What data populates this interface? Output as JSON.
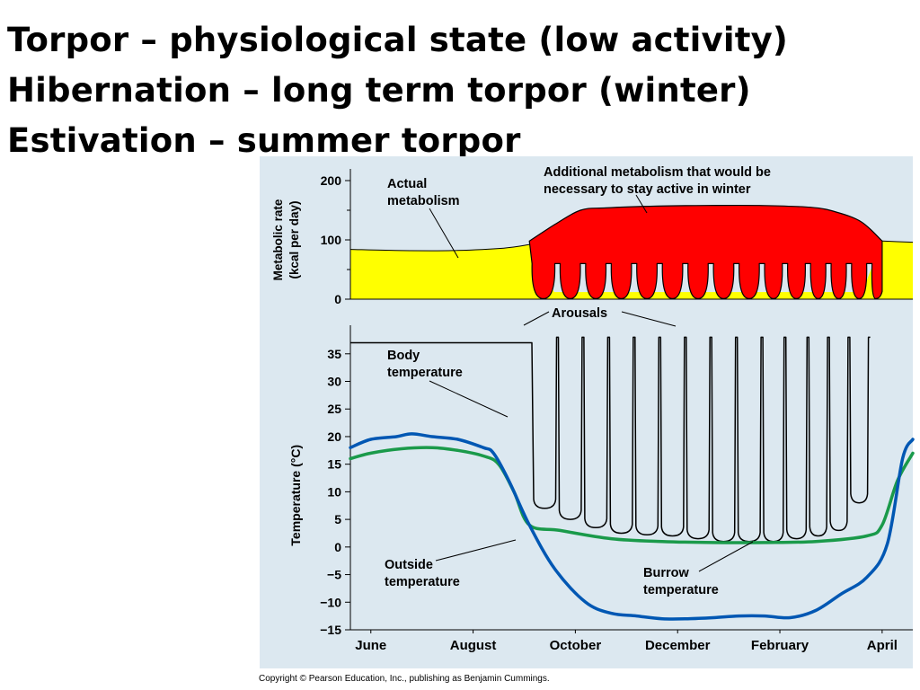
{
  "headlines": [
    "Torpor – physiological state (low activity)",
    "Hibernation – long term torpor (winter)",
    "Estivation – summer torpor"
  ],
  "copyright": "Copyright © Pearson Education, Inc., publishing as Benjamin Cummings.",
  "colors": {
    "panel_bg": "#dce8f0",
    "actual_metabolism_fill": "#ffff00",
    "additional_metabolism_fill": "#ff0000",
    "body_temp_line": "#000000",
    "outside_temp_line": "#0057b3",
    "burrow_temp_line": "#1a9a4a"
  },
  "chart_data": [
    {
      "type": "area",
      "ylabel": "Metabolic rate (kcal per day)",
      "ylim": [
        0,
        200
      ],
      "yticks": [
        0,
        100,
        200
      ],
      "x_month_range": [
        0,
        11
      ],
      "series": [
        {
          "name": "Actual metabolism",
          "x": [
            0,
            1,
            2,
            3,
            3.5,
            4,
            5,
            6,
            7,
            8,
            9,
            10,
            10.4,
            11
          ],
          "values": [
            84,
            82,
            82,
            86,
            92,
            10,
            10,
            10,
            10,
            10,
            10,
            10,
            98,
            96
          ]
        },
        {
          "name": "Additional metabolism that would be necessary to stay active in winter",
          "x": [
            3.5,
            4,
            4.5,
            5,
            6,
            7,
            8,
            9,
            9.5,
            10,
            10.4
          ],
          "values": [
            98,
            126,
            150,
            154,
            157,
            158,
            158,
            155,
            147,
            130,
            98
          ]
        }
      ],
      "annotations": [
        "Actual metabolism",
        "Additional metabolism that would be necessary to stay active in winter"
      ]
    },
    {
      "type": "line",
      "ylabel": "Temperature (°C)",
      "ylim": [
        -15,
        37
      ],
      "yticks": [
        -15,
        -10,
        -5,
        0,
        5,
        10,
        15,
        20,
        25,
        30,
        35
      ],
      "categories": [
        "June",
        "August",
        "October",
        "December",
        "February",
        "April"
      ],
      "category_x": [
        0.4,
        2.4,
        4.4,
        6.4,
        8.4,
        10.4
      ],
      "series": [
        {
          "name": "Body temperature",
          "active_level": 37,
          "torpor_start": 3.55,
          "torpor_end": 10.5,
          "arousal_x": [
            4.05,
            4.55,
            5.05,
            5.55,
            6.05,
            6.55,
            7.05,
            7.55,
            8.05,
            8.5,
            8.95,
            9.35,
            9.75,
            10.15
          ],
          "torpor_min": [
            7,
            5,
            3.5,
            2.5,
            2.2,
            2,
            1.5,
            1,
            1,
            1,
            1.5,
            2,
            3,
            8
          ]
        },
        {
          "name": "Outside temperature",
          "x": [
            0,
            0.4,
            0.9,
            1.2,
            1.6,
            2.1,
            2.6,
            2.8,
            3.1,
            3.5,
            4.0,
            4.6,
            5.1,
            5.6,
            6.1,
            6.6,
            7.1,
            7.6,
            8.1,
            8.6,
            9.1,
            9.6,
            10.1,
            10.5,
            10.8,
            11.0
          ],
          "values": [
            18,
            19.5,
            20,
            20.5,
            20,
            19.5,
            18,
            17,
            12,
            4,
            -4,
            -10,
            -12,
            -12.5,
            -13,
            -13,
            -12.8,
            -12.5,
            -12.5,
            -12.8,
            -11.5,
            -8.5,
            -5.5,
            0.5,
            16,
            19.5
          ]
        },
        {
          "name": "Burrow temperature",
          "x": [
            0,
            0.4,
            1.0,
            1.6,
            2.1,
            2.6,
            2.9,
            3.2,
            3.5,
            4.1,
            5.1,
            6.1,
            7.1,
            8.1,
            9.1,
            10.1,
            10.4,
            10.7,
            11.0
          ],
          "values": [
            16,
            17,
            17.8,
            18,
            17.5,
            16.5,
            15,
            10,
            4,
            3,
            1.5,
            1,
            0.8,
            0.8,
            1,
            2,
            4,
            12,
            17
          ]
        }
      ],
      "annotations": [
        "Arousals",
        "Body temperature",
        "Outside temperature",
        "Burrow temperature"
      ]
    }
  ]
}
